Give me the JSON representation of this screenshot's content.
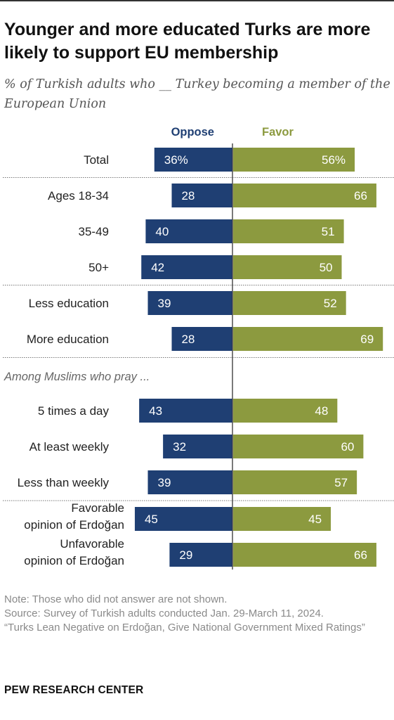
{
  "title": "Younger and more educated Turks are more likely to support EU membership",
  "subtitle": "% of Turkish adults who __ Turkey becoming a member of the European Union",
  "chart_data": {
    "type": "bar",
    "orientation": "horizontal-diverging",
    "series": [
      {
        "name": "Oppose",
        "color": "#1f3f73"
      },
      {
        "name": "Favor",
        "color": "#8c9a3f"
      }
    ],
    "rows": [
      {
        "label": "Total",
        "oppose": 36,
        "favor": 56,
        "oppose_label": "36%",
        "favor_label": "56%",
        "divider_after": true
      },
      {
        "label": "Ages 18-34",
        "oppose": 28,
        "favor": 66,
        "oppose_label": "28",
        "favor_label": "66"
      },
      {
        "label": "35-49",
        "oppose": 40,
        "favor": 51,
        "oppose_label": "40",
        "favor_label": "51"
      },
      {
        "label": "50+",
        "oppose": 42,
        "favor": 50,
        "oppose_label": "42",
        "favor_label": "50",
        "divider_after": true
      },
      {
        "label": "Less education",
        "oppose": 39,
        "favor": 52,
        "oppose_label": "39",
        "favor_label": "52"
      },
      {
        "label": "More education",
        "oppose": 28,
        "favor": 69,
        "oppose_label": "28",
        "favor_label": "69",
        "divider_after": true
      },
      {
        "group_heading": "Among Muslims who pray ..."
      },
      {
        "label": "5 times a day",
        "oppose": 43,
        "favor": 48,
        "oppose_label": "43",
        "favor_label": "48"
      },
      {
        "label": "At least weekly",
        "oppose": 32,
        "favor": 60,
        "oppose_label": "32",
        "favor_label": "60"
      },
      {
        "label": "Less than weekly",
        "oppose": 39,
        "favor": 57,
        "oppose_label": "39",
        "favor_label": "57",
        "divider_after": true
      },
      {
        "label": "Favorable opinion of Erdoğan",
        "label_lines": [
          "Favorable",
          "opinion of Erdoğan"
        ],
        "oppose": 45,
        "favor": 45,
        "oppose_label": "45",
        "favor_label": "45"
      },
      {
        "label": "Unfavorable opinion of Erdoğan",
        "label_lines": [
          "Unfavorable",
          "opinion of Erdoğan"
        ],
        "oppose": 29,
        "favor": 66,
        "oppose_label": "29",
        "favor_label": "66"
      }
    ]
  },
  "notes": {
    "note": "Note: Those who did not answer are not shown.",
    "source": "Source: Survey of Turkish adults conducted Jan. 29-March 11, 2024.",
    "report": "“Turks Lean Negative on Erdoğan, Give National Government Mixed Ratings”"
  },
  "brand": "PEW RESEARCH CENTER"
}
